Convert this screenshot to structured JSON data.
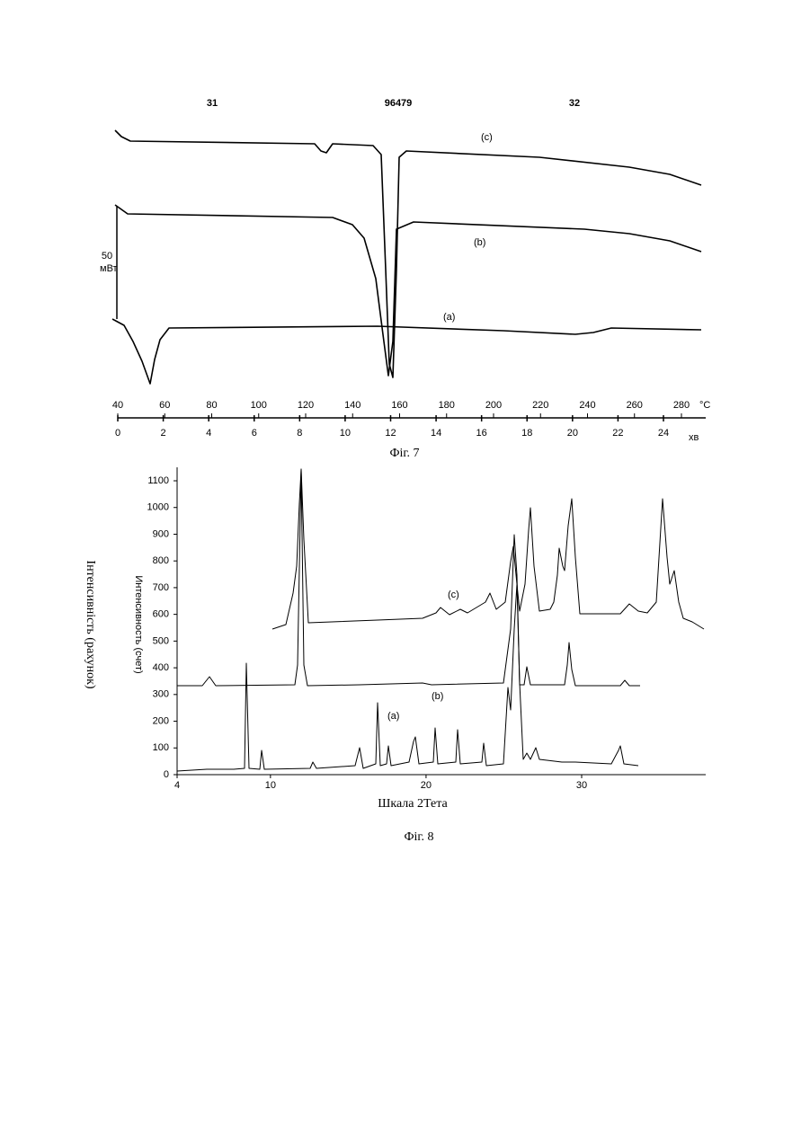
{
  "header": {
    "left": "31",
    "center": "96479",
    "right": "32"
  },
  "figure7": {
    "top_ticks": [
      40,
      60,
      80,
      100,
      120,
      140,
      160,
      180,
      200,
      220,
      240,
      260,
      280
    ],
    "top_unit": "°C",
    "bottom_ticks": [
      0,
      2,
      4,
      6,
      8,
      10,
      12,
      14,
      16,
      18,
      20,
      22,
      24
    ],
    "bottom_unit": "хв",
    "scale_value": 50,
    "scale_unit": "мВт",
    "curve_labels": [
      "(c)",
      "(b)",
      "(a)"
    ],
    "caption": "Фіг. 7"
  },
  "figure8": {
    "yticks": [
      0,
      100,
      200,
      300,
      400,
      500,
      600,
      700,
      800,
      900,
      1000,
      1100
    ],
    "xticks": [
      4,
      10,
      20,
      30
    ],
    "y_label": "Інтенсивність (рахунок)",
    "y_label_ru": "Интенсивность (счет)",
    "x_label": "Шкала 2Тета",
    "curve_labels": [
      "(c)",
      "(b)",
      "(a)"
    ],
    "caption": "Фіг. 8"
  }
}
